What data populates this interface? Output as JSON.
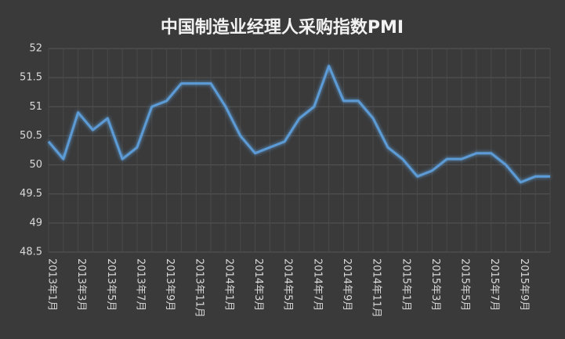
{
  "chart_data": {
    "type": "line",
    "title": "中国制造业经理人采购指数PMI",
    "categories": [
      "2013年1月",
      null,
      "2013年3月",
      null,
      "2013年5月",
      null,
      "2013年7月",
      null,
      "2013年9月",
      null,
      "2013年11月",
      null,
      "2014年1月",
      null,
      "2014年3月",
      null,
      "2014年5月",
      null,
      "2014年7月",
      null,
      "2014年9月",
      null,
      "2014年11月",
      null,
      "2015年1月",
      null,
      "2015年3月",
      null,
      "2015年5月",
      null,
      "2015年7月",
      null,
      "2015年9月",
      null,
      null
    ],
    "series": [
      {
        "name": "PMI",
        "color": "#5b9bd5",
        "values": [
          50.4,
          50.1,
          50.9,
          50.6,
          50.8,
          50.1,
          50.3,
          51.0,
          51.1,
          51.4,
          51.4,
          51.4,
          51.0,
          50.5,
          50.2,
          50.3,
          50.4,
          50.8,
          51.0,
          51.7,
          51.1,
          51.1,
          50.8,
          50.3,
          50.1,
          49.8,
          49.9,
          50.1,
          50.1,
          50.2,
          50.2,
          50.0,
          49.7,
          49.8,
          49.8
        ]
      }
    ],
    "ylim": [
      48.5,
      52
    ],
    "yticks": [
      48.5,
      49,
      49.5,
      50,
      50.5,
      51,
      51.5,
      52
    ],
    "grid": true
  }
}
